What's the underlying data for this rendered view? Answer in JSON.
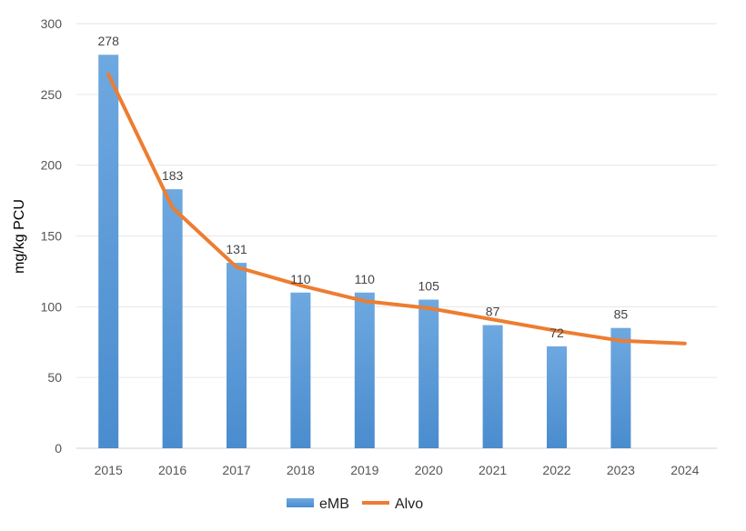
{
  "chart_data": {
    "type": "bar",
    "title": "",
    "xlabel": "",
    "ylabel": "mg/kg PCU",
    "ylim": [
      0,
      300
    ],
    "yticks": [
      0,
      50,
      100,
      150,
      200,
      250,
      300
    ],
    "grid": true,
    "legend_placement": "bottom",
    "categories": [
      "2015",
      "2016",
      "2017",
      "2018",
      "2019",
      "2020",
      "2021",
      "2022",
      "2023",
      "2024"
    ],
    "series": [
      {
        "name": "eMB",
        "kind": "bar",
        "color": "#5b9bd5",
        "values": [
          278,
          183,
          131,
          110,
          110,
          105,
          87,
          72,
          85,
          null
        ]
      },
      {
        "name": "Alvo",
        "kind": "line",
        "color": "#ed7d31",
        "values": [
          264,
          170,
          128,
          115,
          104,
          99,
          91,
          83,
          76,
          74
        ]
      }
    ]
  }
}
